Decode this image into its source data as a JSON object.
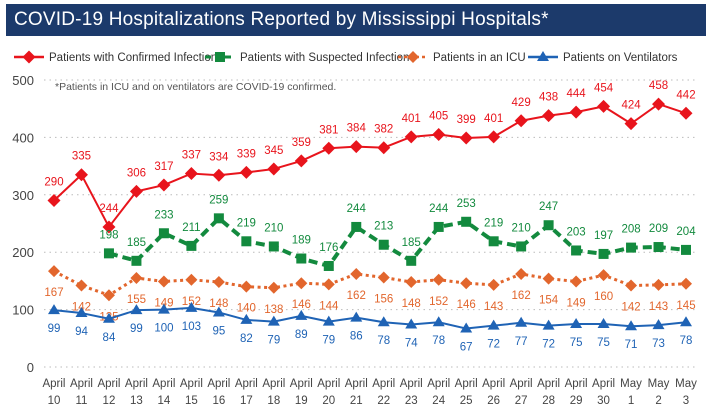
{
  "chart_data": {
    "type": "line",
    "title": "COVID-19 Hospitalizations Reported by Mississippi Hospitals*",
    "annotation": "*Patients in ICU and on ventilators are COVID-19 confirmed.",
    "categories": [
      [
        "April",
        "10"
      ],
      [
        "April",
        "11"
      ],
      [
        "April",
        "12"
      ],
      [
        "April",
        "13"
      ],
      [
        "April",
        "14"
      ],
      [
        "April",
        "15"
      ],
      [
        "April",
        "16"
      ],
      [
        "April",
        "17"
      ],
      [
        "April",
        "18"
      ],
      [
        "April",
        "19"
      ],
      [
        "April",
        "20"
      ],
      [
        "April",
        "21"
      ],
      [
        "April",
        "22"
      ],
      [
        "April",
        "23"
      ],
      [
        "April",
        "24"
      ],
      [
        "April",
        "25"
      ],
      [
        "April",
        "26"
      ],
      [
        "April",
        "27"
      ],
      [
        "April",
        "28"
      ],
      [
        "April",
        "29"
      ],
      [
        "April",
        "30"
      ],
      [
        "May",
        "1"
      ],
      [
        "May",
        "2"
      ],
      [
        "May",
        "3"
      ]
    ],
    "ylim": [
      0,
      500
    ],
    "yticks": [
      0,
      100,
      200,
      300,
      400,
      500
    ],
    "grid": true,
    "legend_position": "top",
    "series": [
      {
        "name": "Patients with Confirmed Infection",
        "color": "#e8141c",
        "marker": "diamond",
        "dash": "solid",
        "values": [
          290,
          335,
          244,
          306,
          317,
          337,
          334,
          339,
          345,
          359,
          381,
          384,
          382,
          401,
          405,
          399,
          401,
          429,
          438,
          444,
          454,
          424,
          458,
          442
        ]
      },
      {
        "name": "Patients with Suspected Infection",
        "color": "#138a3e",
        "marker": "square",
        "dash": "dashed",
        "values": [
          null,
          null,
          198,
          185,
          233,
          211,
          259,
          219,
          210,
          189,
          176,
          244,
          213,
          185,
          244,
          253,
          219,
          210,
          247,
          203,
          197,
          208,
          209,
          204
        ]
      },
      {
        "name": "Patients in an ICU",
        "color": "#e2662d",
        "marker": "diamond",
        "dash": "dotted",
        "values": [
          167,
          142,
          125,
          155,
          149,
          152,
          148,
          140,
          138,
          146,
          144,
          162,
          156,
          148,
          152,
          146,
          143,
          162,
          154,
          149,
          160,
          142,
          143,
          145
        ]
      },
      {
        "name": "Patients on Ventilators",
        "color": "#1f63b5",
        "marker": "triangle",
        "dash": "solid",
        "values": [
          99,
          94,
          84,
          99,
          100,
          103,
          95,
          82,
          79,
          89,
          79,
          86,
          78,
          74,
          78,
          67,
          72,
          77,
          72,
          75,
          75,
          71,
          73,
          78
        ]
      }
    ]
  }
}
